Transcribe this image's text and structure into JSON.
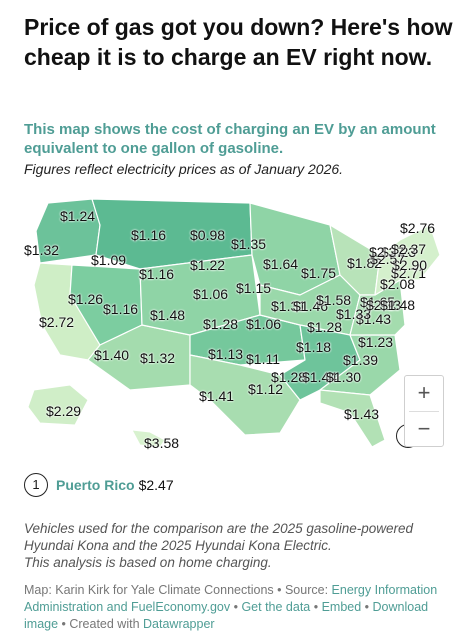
{
  "title": "Price of gas got you down? Here's how cheap it is to charge an EV right now.",
  "subtitle": "This map shows the cost of charging an EV by an amount equivalent to one gallon of gasoline.",
  "note": "Figures reflect electricity prices as of January 2026.",
  "colors": {
    "accent": "#4f9d95",
    "scale_low": "#55b693",
    "scale_high": "#d4f0cc"
  },
  "map_values": [
    {
      "id": "wa",
      "text": "$1.24"
    },
    {
      "id": "or",
      "text": "$1.32"
    },
    {
      "id": "ca",
      "text": "$2.72"
    },
    {
      "id": "id",
      "text": "$1.09"
    },
    {
      "id": "nv",
      "text": "$1.26"
    },
    {
      "id": "ut",
      "text": "$1.16"
    },
    {
      "id": "az",
      "text": "$1.40"
    },
    {
      "id": "mt",
      "text": "$1.16"
    },
    {
      "id": "wy",
      "text": "$1.16"
    },
    {
      "id": "co",
      "text": "$1.48"
    },
    {
      "id": "nm",
      "text": "$1.32"
    },
    {
      "id": "nd",
      "text": "$0.98"
    },
    {
      "id": "sd",
      "text": "$1.22"
    },
    {
      "id": "ne",
      "text": "$1.06"
    },
    {
      "id": "ks",
      "text": "$1.28"
    },
    {
      "id": "ok",
      "text": "$1.13"
    },
    {
      "id": "tx",
      "text": "$1.41"
    },
    {
      "id": "mn",
      "text": "$1.35"
    },
    {
      "id": "ia",
      "text": "$1.15"
    },
    {
      "id": "mo",
      "text": "$1.06"
    },
    {
      "id": "ar",
      "text": "$1.11"
    },
    {
      "id": "la",
      "text": "$1.12"
    },
    {
      "id": "wi",
      "text": "$1.64"
    },
    {
      "id": "il",
      "text": "$1.31"
    },
    {
      "id": "ms",
      "text": "$1.28"
    },
    {
      "id": "mi",
      "text": "$1.75"
    },
    {
      "id": "in",
      "text": "$1.46"
    },
    {
      "id": "ky",
      "text": "$1.28"
    },
    {
      "id": "tn",
      "text": "$1.18"
    },
    {
      "id": "al",
      "text": "$1.44"
    },
    {
      "id": "oh",
      "text": "$1.58"
    },
    {
      "id": "ga",
      "text": "$1.30"
    },
    {
      "id": "fl",
      "text": "$1.43"
    },
    {
      "id": "sc",
      "text": "$1.39"
    },
    {
      "id": "nc",
      "text": "$1.23"
    },
    {
      "id": "va",
      "text": "$1.43"
    },
    {
      "id": "wv",
      "text": "$1.33"
    },
    {
      "id": "pa",
      "text": "$1.82"
    },
    {
      "id": "md",
      "text": "$1.65"
    },
    {
      "id": "de",
      "text": "$2.13"
    },
    {
      "id": "nj",
      "text": "$2.08"
    },
    {
      "id": "dc",
      "text": "$1.48"
    },
    {
      "id": "ny",
      "text": "$2.23"
    },
    {
      "id": "ct",
      "text": "$2.71"
    },
    {
      "id": "ri",
      "text": "$2.90"
    },
    {
      "id": "ma",
      "text": "$2.57"
    },
    {
      "id": "vt",
      "text": "$2.37"
    },
    {
      "id": "nh",
      "text": "$2.37"
    },
    {
      "id": "me",
      "text": "$2.76"
    },
    {
      "id": "ak",
      "text": "$2.29"
    },
    {
      "id": "hi",
      "text": "$3.58"
    }
  ],
  "zoom": {
    "in_label": "+",
    "out_label": "−"
  },
  "puerto_rico": {
    "marker": "1",
    "name": "Puerto Rico",
    "value": "$2.47"
  },
  "footnote": {
    "line1": "Vehicles used for the comparison are the 2025 gasoline-powered",
    "line2": "Hyundai Kona and the 2025 Hyundai Kona Electric.",
    "line3": "This analysis is based on home charging."
  },
  "credits": {
    "prefix": "Map: Karin Kirk for Yale Climate Connections • Source: ",
    "source": "Energy Information Administration and FuelEconomy.gov",
    "sep1": " • ",
    "get_data": "Get the data",
    "sep2": " • ",
    "embed": "Embed",
    "sep3": " • ",
    "download": "Download image",
    "sep4": " • Created with ",
    "created": "Datawrapper"
  }
}
